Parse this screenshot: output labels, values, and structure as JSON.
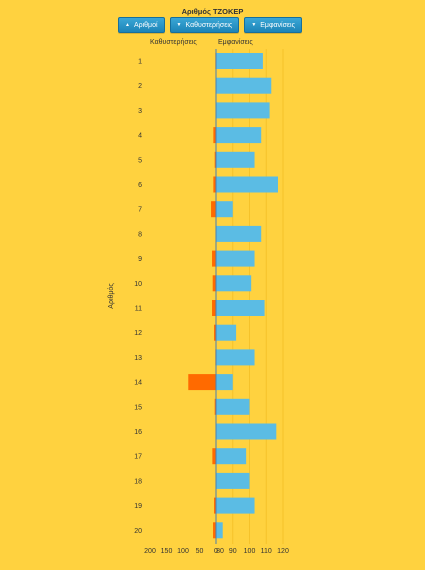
{
  "header": {
    "title": "Αριθμός ΤΖΟΚΕΡ",
    "buttons": [
      {
        "label": "Αριθμοί",
        "caret": "▲"
      },
      {
        "label": "Καθυστερήσεις",
        "caret": "▼"
      },
      {
        "label": "Εμφανίσεις",
        "caret": "▼"
      }
    ]
  },
  "colors": {
    "background": "#FFD23F",
    "delays": "#FF6A00",
    "appearances": "#5BBCE4",
    "axis": "#4a7fb0",
    "grid": "#f5c22a"
  },
  "chart_data": {
    "type": "bar",
    "orientation": "horizontal",
    "ylabel": "Αριθμός",
    "left_header": "Καθυστερήσεις",
    "right_header": "Εμφανίσεις",
    "categories": [
      "1",
      "2",
      "3",
      "4",
      "5",
      "6",
      "7",
      "8",
      "9",
      "10",
      "11",
      "12",
      "13",
      "14",
      "15",
      "16",
      "17",
      "18",
      "19",
      "20"
    ],
    "series": [
      {
        "name": "Καθυστερήσεις",
        "values": [
          2,
          0,
          0,
          8,
          4,
          8,
          15,
          0,
          12,
          10,
          12,
          6,
          2,
          84,
          4,
          0,
          11,
          1,
          6,
          9
        ]
      },
      {
        "name": "Εμφανίσεις",
        "values": [
          108,
          113,
          112,
          107,
          103,
          117,
          90,
          107,
          103,
          101,
          109,
          92,
          103,
          90,
          100,
          116,
          98,
          100,
          103,
          84
        ]
      }
    ],
    "left_ticks": [
      "200",
      "150",
      "100",
      "50",
      "0"
    ],
    "right_ticks": [
      "80",
      "90",
      "100",
      "110",
      "120"
    ],
    "left_range": [
      0,
      200
    ],
    "right_range": [
      80,
      120
    ]
  }
}
